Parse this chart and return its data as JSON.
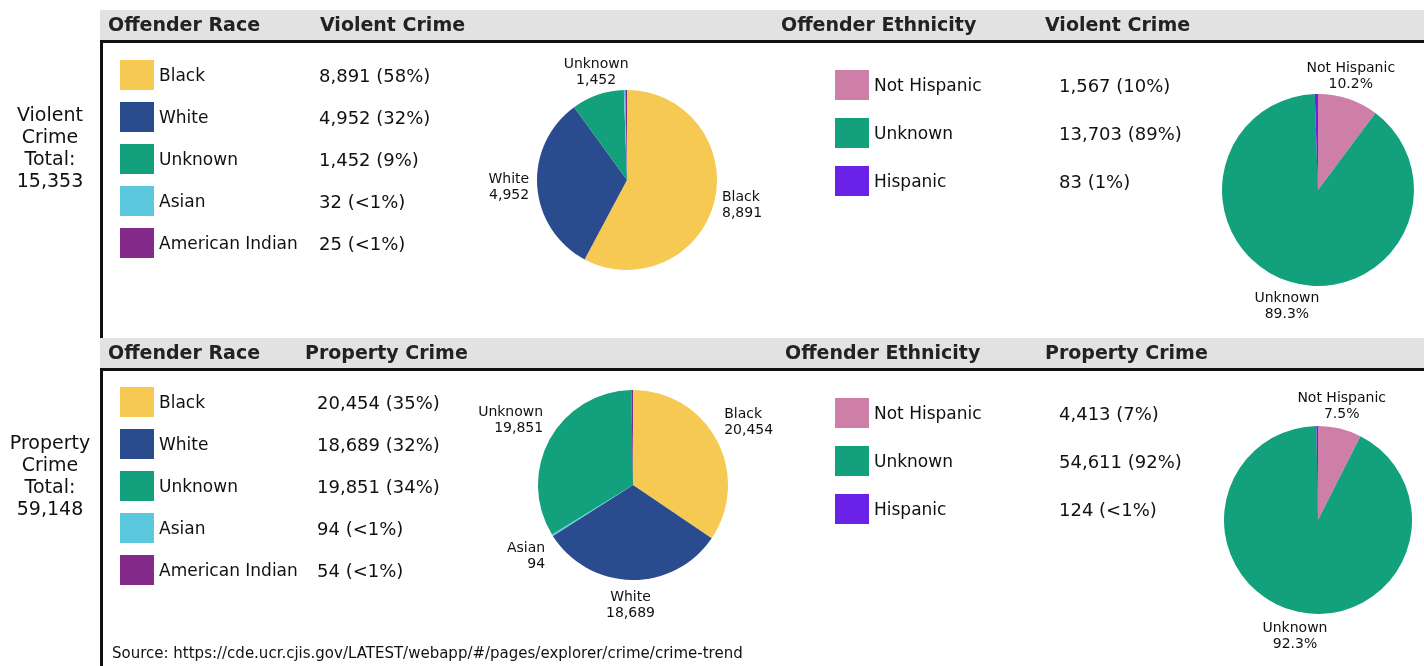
{
  "chart_data": [
    {
      "type": "pie",
      "legend_title": "Offender Race",
      "title": "Violent Crime",
      "legend": "left",
      "categories": [
        "Black",
        "White",
        "Unknown",
        "Asian",
        "American Indian"
      ],
      "values": [
        8891,
        4952,
        1452,
        32,
        25
      ],
      "colors": [
        "#f5c952",
        "#2a4c8f",
        "#13a07c",
        "#5bc8de",
        "#842a8b"
      ],
      "value_labels": [
        "8,891 (58%)",
        "4,952 (32%)",
        "1,452 (9%)",
        "32 (<1%)",
        "25 (<1%)"
      ],
      "annotations": [
        "Violent Crime Total: 15,353",
        {
          "text": "8,891",
          "x": "Black"
        },
        {
          "text": "4,952",
          "x": "White"
        },
        {
          "text": "1,452",
          "x": "Unknown"
        }
      ]
    },
    {
      "type": "pie",
      "legend_title": "Offender Ethnicity",
      "title": "Violent Crime",
      "legend": "left",
      "categories": [
        "Not Hispanic",
        "Unknown",
        "Hispanic"
      ],
      "values": [
        1567,
        13703,
        83
      ],
      "colors": [
        "#cd7fa8",
        "#13a07c",
        "#6a22e8"
      ],
      "value_labels": [
        "1,567 (10%)",
        "13,703 (89%)",
        "83 (1%)"
      ],
      "annotations": [
        {
          "text": "10.2%",
          "x": "Not Hispanic"
        },
        {
          "text": "89.3%",
          "x": "Unknown"
        }
      ]
    },
    {
      "type": "pie",
      "legend_title": "Offender Race",
      "title": "Property Crime",
      "legend": "left",
      "categories": [
        "Black",
        "White",
        "Unknown",
        "Asian",
        "American Indian"
      ],
      "values": [
        20454,
        18689,
        19851,
        94,
        54
      ],
      "colors": [
        "#f5c952",
        "#2a4c8f",
        "#13a07c",
        "#5bc8de",
        "#842a8b"
      ],
      "value_labels": [
        "20,454 (35%)",
        "18,689 (32%)",
        "19,851 (34%)",
        "94 (<1%)",
        "54 (<1%)"
      ],
      "annotations": [
        "Property Crime Total: 59,148",
        "Source: https://cde.ucr.cjis.gov/LATEST/webapp/#/pages/explorer/crime/crime-trend",
        {
          "text": "20,454",
          "x": "Black"
        },
        {
          "text": "18,689",
          "x": "White"
        },
        {
          "text": "19,851",
          "x": "Unknown"
        },
        {
          "text": "94",
          "x": "Asian"
        }
      ]
    },
    {
      "type": "pie",
      "legend_title": "Offender Ethnicity",
      "title": "Property Crime",
      "legend": "left",
      "categories": [
        "Not Hispanic",
        "Unknown",
        "Hispanic"
      ],
      "values": [
        4413,
        54611,
        124
      ],
      "colors": [
        "#cd7fa8",
        "#13a07c",
        "#6a22e8"
      ],
      "value_labels": [
        "4,413 (7%)",
        "54,611 (92%)",
        "124 (<1%)"
      ],
      "annotations": [
        {
          "text": "7.5%",
          "x": "Not Hispanic"
        },
        {
          "text": "92.3%",
          "x": "Unknown"
        }
      ]
    }
  ]
}
